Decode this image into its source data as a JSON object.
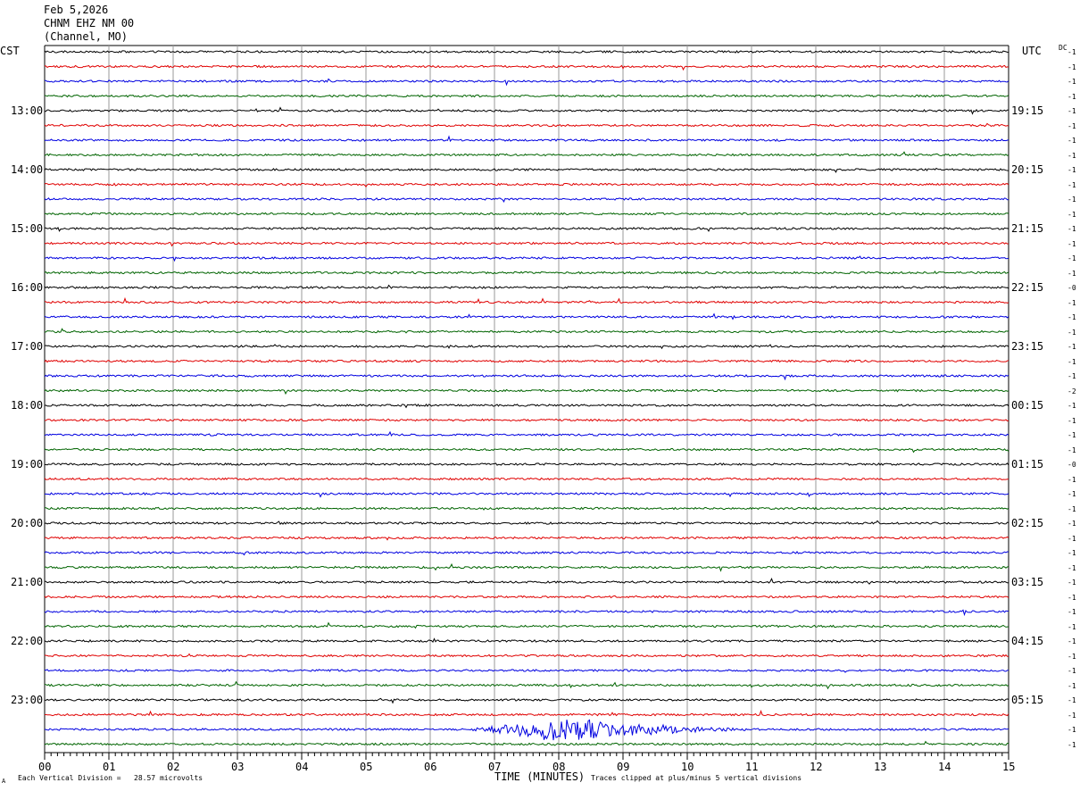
{
  "header": {
    "date": "Feb 5,2026",
    "station": "CHNM EHZ NM 00",
    "subtitle": "(Channel, MO)"
  },
  "left_tz": "CST",
  "right_tz": "UTC",
  "dc_label": "DC",
  "footer": {
    "scale": "Each Vertical Division =   28.57 microvolts",
    "xlabel": "TIME (MINUTES)",
    "clip_note": "Traces clipped at plus/minus 5 vertical divisions",
    "corner_mark": "A"
  },
  "chart_data": {
    "type": "line",
    "title": "CHNM EHZ NM 00",
    "xlabel": "TIME (MINUTES)",
    "x_ticks": [
      "00",
      "01",
      "02",
      "03",
      "04",
      "05",
      "06",
      "07",
      "08",
      "09",
      "10",
      "11",
      "12",
      "13",
      "14",
      "15"
    ],
    "xlim": [
      0,
      15
    ],
    "trace_count": 48,
    "trace_minutes": 15,
    "trace_colors": [
      "#000000",
      "#e00000",
      "#0000e0",
      "#006400"
    ],
    "left_hour_labels": [
      "13:00",
      "14:00",
      "15:00",
      "16:00",
      "17:00",
      "18:00",
      "19:00",
      "20:00",
      "21:00",
      "22:00",
      "23:00"
    ],
    "right_hour_labels": [
      "19:15",
      "20:15",
      "21:15",
      "22:15",
      "23:15",
      "00:15",
      "01:15",
      "02:15",
      "03:15",
      "04:15",
      "05:15"
    ],
    "dc_offsets": [
      "-1",
      "-1",
      "-1",
      "-1",
      "-1",
      "-1",
      "-1",
      "-1",
      "-1",
      "-1",
      "-1",
      "-1",
      "-1",
      "-1",
      "-1",
      "-1",
      "-0",
      "-1",
      "-1",
      "-1",
      "-1",
      "-1",
      "-1",
      "-2",
      "-1",
      "-1",
      "-1",
      "-1",
      "-0",
      "-1",
      "-1",
      "-1",
      "-1",
      "-1",
      "-1",
      "-1",
      "-1",
      "-1",
      "-1",
      "-1",
      "-1",
      "-1",
      "-1",
      "-1",
      "-1",
      "-1",
      "-1",
      "-1"
    ],
    "event": {
      "trace_index": 46,
      "start_minute": 6.5,
      "peak_minute": 7.9,
      "end_minute": 11.2,
      "peak_amplitude_divisions": 2.2
    },
    "grid": true
  }
}
